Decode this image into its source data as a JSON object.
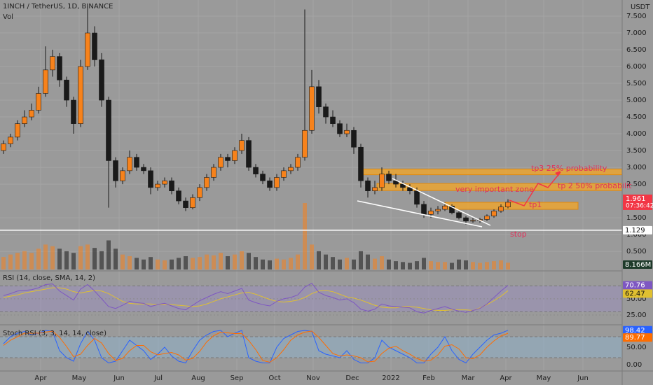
{
  "chart_data": {
    "type": "candlestick",
    "title": "1INCH / TetherUS, 1D, BINANCE",
    "currency": "USDT",
    "up_color": "#f7821b",
    "down_color": "#1a1a1a",
    "xlim": [
      -0.5,
      88.3
    ],
    "xticks": [
      {
        "value": 5.3,
        "label": "Apr"
      },
      {
        "value": 10.8,
        "label": "May"
      },
      {
        "value": 16.5,
        "label": "Jun"
      },
      {
        "value": 22.1,
        "label": "Jul"
      },
      {
        "value": 27.8,
        "label": "Aug"
      },
      {
        "value": 33.3,
        "label": "Sep"
      },
      {
        "value": 38.7,
        "label": "Oct"
      },
      {
        "value": 44.2,
        "label": "Nov"
      },
      {
        "value": 49.8,
        "label": "Dec"
      },
      {
        "value": 55.3,
        "label": "2022"
      },
      {
        "value": 60.7,
        "label": "Feb"
      },
      {
        "value": 66.3,
        "label": "Mar"
      },
      {
        "value": 71.7,
        "label": "Apr"
      },
      {
        "value": 77.1,
        "label": "May"
      },
      {
        "value": 82.7,
        "label": "Jun"
      }
    ],
    "ylim": [
      -0.04,
      7.98
    ],
    "yticks": [
      {
        "value": 0.5,
        "label": "0.500"
      },
      {
        "value": 1,
        "label": "1.000"
      },
      {
        "value": 1.5,
        "label": "1.500"
      },
      {
        "value": 2.5,
        "label": "2.500"
      },
      {
        "value": 3,
        "label": "3.000"
      },
      {
        "value": 3.5,
        "label": "3.500"
      },
      {
        "value": 4,
        "label": "4.000"
      },
      {
        "value": 4.5,
        "label": "4.500"
      },
      {
        "value": 5,
        "label": "5.000"
      },
      {
        "value": 5.5,
        "label": "5.500"
      },
      {
        "value": 6,
        "label": "6.000"
      },
      {
        "value": 6.5,
        "label": "6.500"
      },
      {
        "value": 7,
        "label": "7.000"
      },
      {
        "value": 7.5,
        "label": "7.500"
      }
    ],
    "candles": [
      [
        3.5,
        3.8,
        3.4,
        3.7
      ],
      [
        3.7,
        4.0,
        3.6,
        3.9
      ],
      [
        3.9,
        4.4,
        3.8,
        4.3
      ],
      [
        4.3,
        4.7,
        4.2,
        4.5
      ],
      [
        4.5,
        4.9,
        4.4,
        4.7
      ],
      [
        4.7,
        5.4,
        4.6,
        5.2
      ],
      [
        5.2,
        6.6,
        5.1,
        5.9
      ],
      [
        5.9,
        6.5,
        5.7,
        6.3
      ],
      [
        6.3,
        6.4,
        5.4,
        5.6
      ],
      [
        5.6,
        5.7,
        4.8,
        5.0
      ],
      [
        5.0,
        5.1,
        4.0,
        4.3
      ],
      [
        4.3,
        6.2,
        4.2,
        6.0
      ],
      [
        6.0,
        7.8,
        5.9,
        7.0
      ],
      [
        7.0,
        7.2,
        6.0,
        6.2
      ],
      [
        6.2,
        6.4,
        4.8,
        5.0
      ],
      [
        5.0,
        5.1,
        1.8,
        3.2
      ],
      [
        3.2,
        3.3,
        2.4,
        2.6
      ],
      [
        2.6,
        3.0,
        2.5,
        2.9
      ],
      [
        2.9,
        3.5,
        2.8,
        3.3
      ],
      [
        3.3,
        3.4,
        2.9,
        3.0
      ],
      [
        3.0,
        3.1,
        2.8,
        2.9
      ],
      [
        2.9,
        3.0,
        2.2,
        2.4
      ],
      [
        2.4,
        2.6,
        2.3,
        2.5
      ],
      [
        2.5,
        2.7,
        2.4,
        2.6
      ],
      [
        2.6,
        2.7,
        2.2,
        2.3
      ],
      [
        2.3,
        2.4,
        1.9,
        2.0
      ],
      [
        2.0,
        2.1,
        1.7,
        1.8
      ],
      [
        1.8,
        2.2,
        1.75,
        2.1
      ],
      [
        2.1,
        2.5,
        2.0,
        2.4
      ],
      [
        2.4,
        2.8,
        2.3,
        2.7
      ],
      [
        2.7,
        3.1,
        2.6,
        3.0
      ],
      [
        3.0,
        3.4,
        2.9,
        3.3
      ],
      [
        3.3,
        3.4,
        3.0,
        3.2
      ],
      [
        3.2,
        3.6,
        3.1,
        3.5
      ],
      [
        3.5,
        4.0,
        3.4,
        3.8
      ],
      [
        3.8,
        3.9,
        2.9,
        3.0
      ],
      [
        3.0,
        3.1,
        2.7,
        2.8
      ],
      [
        2.8,
        2.9,
        2.5,
        2.6
      ],
      [
        2.6,
        2.7,
        2.3,
        2.4
      ],
      [
        2.4,
        2.8,
        2.3,
        2.7
      ],
      [
        2.7,
        3.0,
        2.6,
        2.9
      ],
      [
        2.9,
        3.1,
        2.8,
        3.0
      ],
      [
        3.0,
        3.4,
        2.9,
        3.3
      ],
      [
        3.3,
        7.7,
        3.2,
        4.1
      ],
      [
        4.1,
        5.9,
        4.0,
        5.4
      ],
      [
        5.4,
        5.6,
        4.6,
        4.8
      ],
      [
        4.8,
        4.9,
        4.3,
        4.5
      ],
      [
        4.5,
        4.7,
        4.2,
        4.3
      ],
      [
        4.3,
        4.4,
        3.9,
        4.0
      ],
      [
        4.0,
        4.3,
        3.9,
        4.1
      ],
      [
        4.1,
        4.2,
        3.4,
        3.6
      ],
      [
        3.6,
        3.7,
        2.4,
        2.6
      ],
      [
        2.6,
        2.7,
        2.1,
        2.3
      ],
      [
        2.3,
        2.6,
        2.2,
        2.4
      ],
      [
        2.4,
        3.0,
        2.3,
        2.8
      ],
      [
        2.8,
        2.9,
        2.5,
        2.6
      ],
      [
        2.6,
        2.8,
        2.4,
        2.5
      ],
      [
        2.5,
        2.6,
        2.3,
        2.4
      ],
      [
        2.4,
        2.5,
        2.2,
        2.3
      ],
      [
        2.3,
        2.4,
        1.8,
        1.9
      ],
      [
        1.9,
        2.0,
        1.5,
        1.6
      ],
      [
        1.6,
        1.8,
        1.5,
        1.7
      ],
      [
        1.7,
        1.85,
        1.6,
        1.75
      ],
      [
        1.75,
        1.95,
        1.7,
        1.85
      ],
      [
        1.85,
        1.9,
        1.6,
        1.65
      ],
      [
        1.65,
        1.7,
        1.45,
        1.5
      ],
      [
        1.5,
        1.55,
        1.3,
        1.4
      ],
      [
        1.4,
        1.5,
        1.35,
        1.42
      ],
      [
        1.42,
        1.5,
        1.35,
        1.45
      ],
      [
        1.45,
        1.6,
        1.4,
        1.55
      ],
      [
        1.55,
        1.75,
        1.5,
        1.7
      ],
      [
        1.7,
        1.9,
        1.65,
        1.82
      ],
      [
        1.82,
        2.05,
        1.78,
        1.961
      ]
    ],
    "price_badge": "1.961",
    "countdown": "07:36:42",
    "hline": {
      "value": 1.129,
      "label": "1.129",
      "color": "#ffffff"
    },
    "zones": [
      {
        "x": [
          50.7,
          88.3
        ],
        "y": [
          2.78,
          2.95
        ]
      },
      {
        "x": [
          53.3,
          88.3
        ],
        "y": [
          2.31,
          2.52
        ]
      },
      {
        "x": [
          63,
          82
        ],
        "y": [
          1.75,
          1.96
        ]
      }
    ],
    "zone_color": "#f5a623",
    "annotations": [
      "tp3 25% probability",
      "tp 2 50% probabilit",
      "very important zone",
      "tp1",
      "stop"
    ],
    "volume": {
      "title": "Vol",
      "ylim": [
        0,
        80
      ],
      "badge": "8.166M",
      "values": [
        15,
        18,
        20,
        22,
        20,
        25,
        30,
        28,
        25,
        22,
        20,
        28,
        30,
        26,
        22,
        35,
        25,
        18,
        16,
        14,
        12,
        15,
        12,
        11,
        12,
        14,
        16,
        14,
        15,
        18,
        17,
        20,
        16,
        18,
        22,
        20,
        15,
        12,
        11,
        13,
        12,
        14,
        18,
        80,
        30,
        22,
        18,
        15,
        12,
        14,
        12,
        22,
        18,
        13,
        16,
        12,
        10,
        9,
        8,
        10,
        14,
        10,
        9,
        9,
        8,
        12,
        11,
        9,
        8,
        9,
        10,
        11,
        8.166
      ]
    },
    "rsi": {
      "title": "RSI (14, close, SMA, 14, 2)",
      "ylim": [
        12,
        92
      ],
      "bands": [
        30,
        70
      ],
      "yticks": [
        {
          "value": 25,
          "label": "25.00"
        },
        {
          "value": 50,
          "label": "50.00"
        }
      ],
      "color": "#7e57c2",
      "sma_color": "#e0c030",
      "badges": [
        "70.76",
        "62.47"
      ],
      "values": [
        55,
        58,
        62,
        63,
        64,
        67,
        72,
        73,
        62,
        55,
        48,
        65,
        72,
        62,
        50,
        38,
        35,
        40,
        46,
        44,
        43,
        38,
        41,
        43,
        39,
        35,
        33,
        40,
        47,
        52,
        57,
        61,
        58,
        62,
        66,
        48,
        44,
        41,
        39,
        46,
        50,
        52,
        56,
        68,
        74,
        60,
        55,
        52,
        48,
        50,
        44,
        34,
        31,
        34,
        42,
        39,
        38,
        37,
        36,
        30,
        28,
        32,
        35,
        38,
        34,
        31,
        29,
        32,
        35,
        42,
        52,
        62,
        70.76
      ],
      "sma": [
        52,
        54,
        56,
        59,
        61,
        63,
        65,
        67,
        67,
        65,
        61,
        59,
        61,
        63,
        62,
        58,
        52,
        46,
        43,
        42,
        42,
        42,
        41,
        41,
        41,
        40,
        39,
        38,
        39,
        42,
        46,
        50,
        53,
        56,
        59,
        60,
        57,
        53,
        49,
        46,
        45,
        46,
        48,
        52,
        58,
        62,
        63,
        61,
        57,
        53,
        51,
        48,
        44,
        40,
        37,
        36,
        36,
        38,
        38,
        37,
        35,
        33,
        32,
        32,
        33,
        33,
        33,
        32,
        36,
        41,
        47,
        54,
        62.47
      ]
    },
    "stoch": {
      "title": "Stoch RSI (3, 3, 14, 14, close)",
      "ylim": [
        -18,
        110
      ],
      "bands": [
        20,
        80
      ],
      "yticks": [
        {
          "value": 0,
          "label": "0.00"
        },
        {
          "value": 50,
          "label": "50.00"
        }
      ],
      "k_color": "#2962ff",
      "d_color": "#ff6d00",
      "badges": [
        "98.42",
        "89.77"
      ],
      "k": [
        60,
        80,
        90,
        95,
        85,
        90,
        98,
        95,
        40,
        20,
        10,
        60,
        95,
        70,
        20,
        5,
        10,
        40,
        70,
        55,
        40,
        15,
        30,
        50,
        25,
        10,
        5,
        40,
        70,
        85,
        95,
        98,
        80,
        90,
        98,
        20,
        10,
        5,
        5,
        50,
        75,
        85,
        95,
        98,
        95,
        40,
        30,
        25,
        20,
        40,
        15,
        5,
        5,
        20,
        70,
        50,
        40,
        30,
        20,
        5,
        5,
        30,
        50,
        80,
        40,
        15,
        5,
        30,
        50,
        70,
        85,
        90,
        98.42
      ],
      "d": [
        55,
        70,
        80,
        90,
        90,
        90,
        93,
        96,
        78,
        52,
        23,
        30,
        55,
        75,
        62,
        32,
        12,
        18,
        40,
        55,
        55,
        37,
        28,
        32,
        35,
        28,
        13,
        18,
        38,
        65,
        83,
        93,
        91,
        89,
        89,
        69,
        43,
        12,
        7,
        20,
        43,
        70,
        85,
        93,
        96,
        78,
        55,
        32,
        25,
        28,
        25,
        20,
        8,
        10,
        32,
        47,
        53,
        40,
        30,
        18,
        10,
        13,
        28,
        53,
        57,
        45,
        20,
        17,
        28,
        50,
        68,
        82,
        89.77
      ]
    }
  }
}
